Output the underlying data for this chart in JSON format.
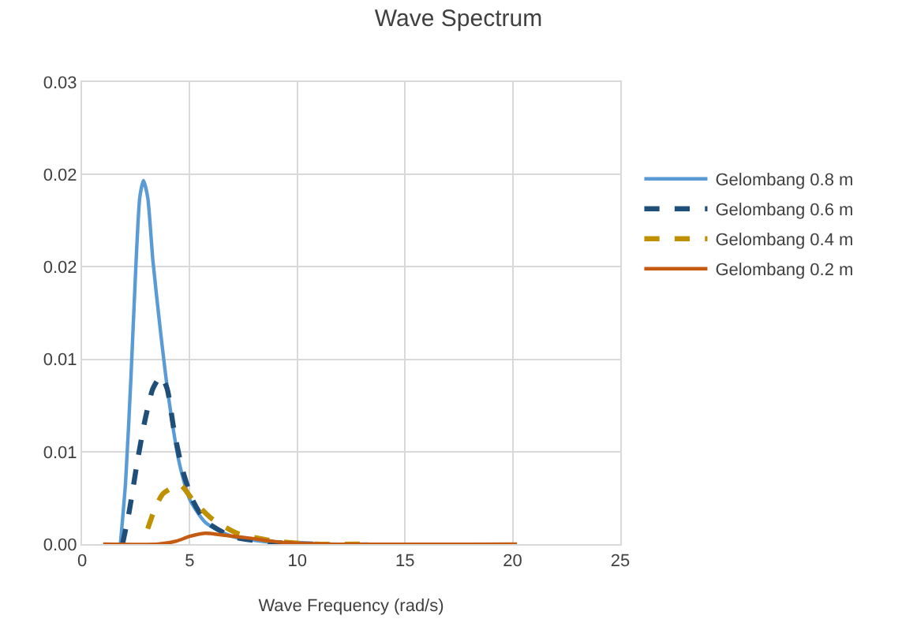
{
  "chart_data": {
    "type": "line",
    "title": "Wave Spectrum",
    "xlabel": "Wave Frequency (rad/s)",
    "xlim": [
      0,
      25
    ],
    "xticks": [
      0,
      5,
      10,
      15,
      20,
      25
    ],
    "ylim": [
      0,
      0.03
    ],
    "yticks": [
      {
        "value": 0,
        "label": "0.00"
      },
      {
        "value": 0.006,
        "label": "0.01"
      },
      {
        "value": 0.012,
        "label": "0.01"
      },
      {
        "value": 0.018,
        "label": "0.02"
      },
      {
        "value": 0.024,
        "label": "0.02"
      },
      {
        "value": 0.03,
        "label": "0.03"
      }
    ],
    "grid": true,
    "legend": "right",
    "marker": "none",
    "series": [
      {
        "name": "Gelombang 0.8 m",
        "color": "#5b9bd5",
        "line_style": "solid",
        "x": [
          1.78,
          2.02,
          2.27,
          2.51,
          2.68,
          2.85,
          3.05,
          3.29,
          3.66,
          4.02,
          4.51,
          5.0,
          5.73,
          6.95,
          8.9,
          11.3,
          13.3
        ],
        "values": [
          0,
          0.004,
          0.0108,
          0.0184,
          0.0225,
          0.0236,
          0.0225,
          0.0184,
          0.0136,
          0.0095,
          0.0053,
          0.0029,
          0.0014,
          0.0005,
          0.0001,
          0,
          0
        ]
      },
      {
        "name": "Gelombang 0.6 m",
        "color": "#1f4e79",
        "line_style": "dashed",
        "x": [
          1.88,
          2.2,
          2.56,
          2.93,
          3.29,
          3.66,
          3.95,
          4.27,
          4.63,
          5.12,
          5.73,
          6.95,
          8.9,
          10.85
        ],
        "values": [
          0,
          0.0022,
          0.0053,
          0.0081,
          0.0101,
          0.0109,
          0.0101,
          0.0074,
          0.005,
          0.0029,
          0.0015,
          0.0005,
          0.0001,
          0
        ]
      },
      {
        "name": "Gelombang 0.4 m",
        "color": "#bf9000",
        "line_style": "dashed",
        "x": [
          3.05,
          3.41,
          3.78,
          4.56,
          5.12,
          5.98,
          7.2,
          8.9,
          10.85,
          13.2
        ],
        "values": [
          0.001,
          0.0024,
          0.0033,
          0.00385,
          0.0029,
          0.0017,
          0.0007,
          0.0002,
          0,
          0
        ]
      },
      {
        "name": "Gelombang 0.2 m",
        "color": "#c55a11",
        "line_style": "solid",
        "x": [
          0.98,
          3.54,
          4.39,
          5.0,
          5.73,
          6.46,
          7.68,
          9.39,
          11.3,
          20.2
        ],
        "values": [
          0,
          0,
          0.0002,
          0.0005,
          0.0007,
          0.0006,
          0.0004,
          0.0001,
          0,
          0
        ]
      }
    ]
  }
}
